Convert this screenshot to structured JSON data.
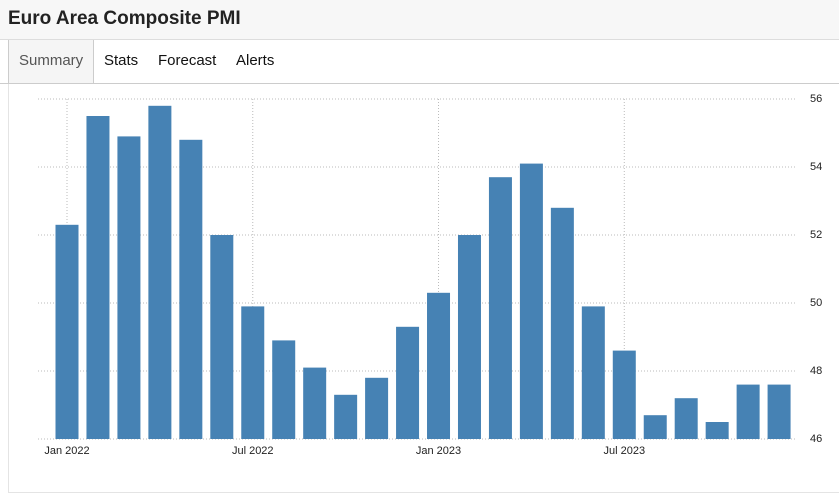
{
  "header": {
    "title": "Euro Area Composite PMI"
  },
  "tabs": [
    "Summary",
    "Stats",
    "Forecast",
    "Alerts"
  ],
  "chart_data": {
    "type": "bar",
    "categories": [
      "Jan 2022",
      null,
      null,
      null,
      null,
      null,
      "Jul 2022",
      null,
      null,
      null,
      null,
      null,
      "Jan 2023",
      null,
      null,
      null,
      null,
      null,
      "Jul 2023",
      null,
      null,
      null,
      null,
      null
    ],
    "values": [
      52.3,
      55.5,
      54.9,
      55.8,
      54.8,
      52.0,
      49.9,
      48.9,
      48.1,
      47.3,
      47.8,
      49.3,
      50.3,
      52.0,
      53.7,
      54.1,
      52.8,
      49.9,
      48.6,
      46.7,
      47.2,
      46.5,
      47.6,
      47.6
    ],
    "color": "#4682b4",
    "ylim": [
      46,
      56
    ],
    "yticks": [
      46,
      48,
      50,
      52,
      54,
      56
    ],
    "grid": true
  }
}
